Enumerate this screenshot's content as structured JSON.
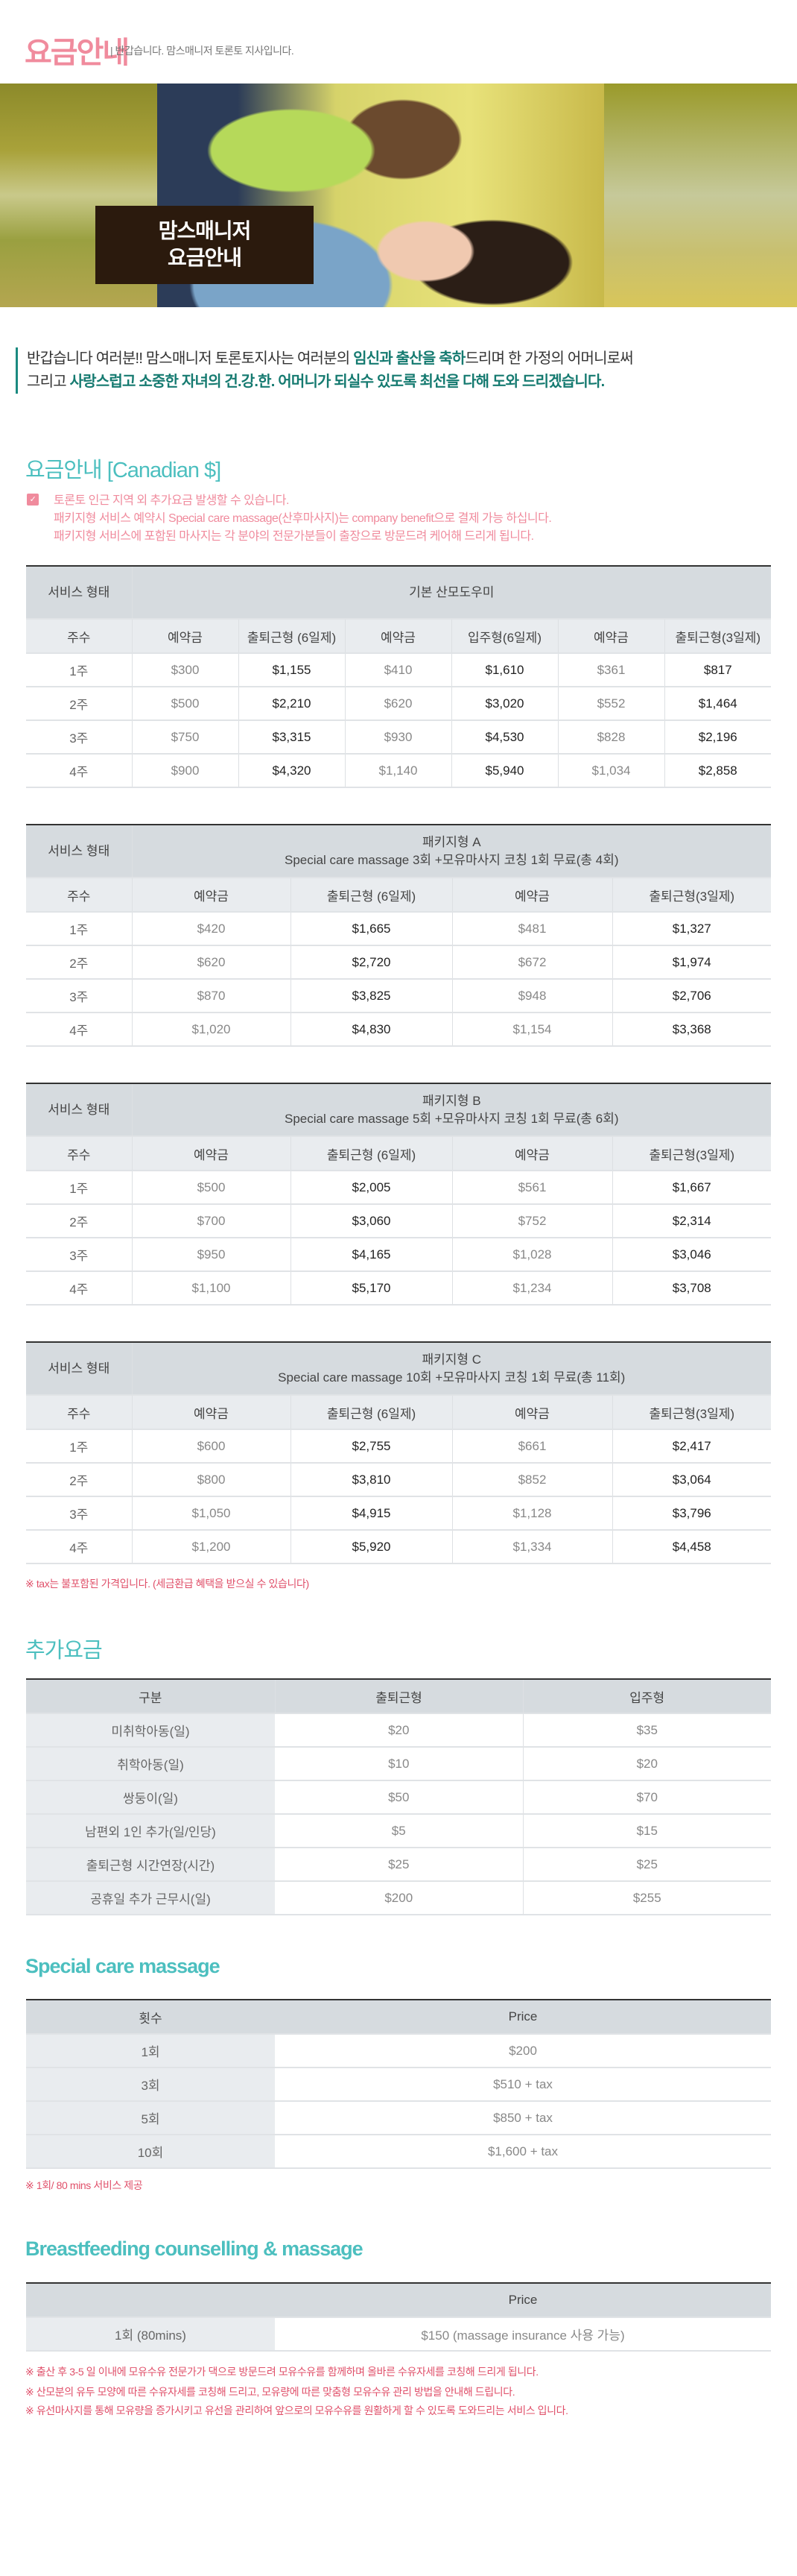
{
  "header": {
    "title": "요금안내",
    "subtitle": "| 반갑습니다. 맘스매니저 토론토 지사입니다."
  },
  "banner": {
    "line1": "맘스매니저",
    "line2": "요금안내"
  },
  "intro": {
    "l1a": "반갑습니다 여러분!! 맘스매니저 토론토지사는 여러분의 ",
    "l1b": "임신과 출산을 축하",
    "l1c": "드리며 한 가정의 어머니로써",
    "l2a": "그리고 ",
    "l2b": "사랑스럽고 소중한 자녀의 건.강.한. 어머니가 되실수 있도록 최선을 다해 도와 드리겠습니다."
  },
  "pricing": {
    "title": "요금안내 [Canadian $]",
    "notes": [
      "토론토 인근 지역 외 추가요금 발생할 수 있습니다.",
      "패키지형 서비스 예약시 Special care massage(산후마사지)는 company benefit으로 결제 가능 하십니다.",
      "패키지형 서비스에 포함된 마사지는 각 분야의 전문가분들이 출장으로 방문드려 케어해 드리게 됩니다."
    ],
    "tax_note": "※ tax는 불포함된 가격입니다. (세금환급 혜택을 받으실 수 있습니다)"
  },
  "tables": [
    {
      "corner": "서비스 형태",
      "title": "기본 산모도우미",
      "subtitle": "",
      "cols": [
        "주수",
        "예약금",
        "출퇴근형 (6일제)",
        "예약금",
        "입주형(6일제)",
        "예약금",
        "출퇴근형(3일제)"
      ],
      "rows": [
        [
          "1주",
          "$300",
          "$1,155",
          "$410",
          "$1,610",
          "$361",
          "$817"
        ],
        [
          "2주",
          "$500",
          "$2,210",
          "$620",
          "$3,020",
          "$552",
          "$1,464"
        ],
        [
          "3주",
          "$750",
          "$3,315",
          "$930",
          "$4,530",
          "$828",
          "$2,196"
        ],
        [
          "4주",
          "$900",
          "$4,320",
          "$1,140",
          "$5,940",
          "$1,034",
          "$2,858"
        ]
      ]
    },
    {
      "corner": "서비스 형태",
      "title": "패키지형 A",
      "subtitle": "Special care massage 3회 +모유마사지 코칭 1회 무료(총 4회)",
      "cols": [
        "주수",
        "예약금",
        "출퇴근형 (6일제)",
        "예약금",
        "출퇴근형(3일제)"
      ],
      "rows": [
        [
          "1주",
          "$420",
          "$1,665",
          "$481",
          "$1,327"
        ],
        [
          "2주",
          "$620",
          "$2,720",
          "$672",
          "$1,974"
        ],
        [
          "3주",
          "$870",
          "$3,825",
          "$948",
          "$2,706"
        ],
        [
          "4주",
          "$1,020",
          "$4,830",
          "$1,154",
          "$3,368"
        ]
      ]
    },
    {
      "corner": "서비스 형태",
      "title": "패키지형 B",
      "subtitle": "Special care massage 5회 +모유마사지 코칭 1회 무료(총 6회)",
      "cols": [
        "주수",
        "예약금",
        "출퇴근형 (6일제)",
        "예약금",
        "출퇴근형(3일제)"
      ],
      "rows": [
        [
          "1주",
          "$500",
          "$2,005",
          "$561",
          "$1,667"
        ],
        [
          "2주",
          "$700",
          "$3,060",
          "$752",
          "$2,314"
        ],
        [
          "3주",
          "$950",
          "$4,165",
          "$1,028",
          "$3,046"
        ],
        [
          "4주",
          "$1,100",
          "$5,170",
          "$1,234",
          "$3,708"
        ]
      ]
    },
    {
      "corner": "서비스 형태",
      "title": "패키지형 C",
      "subtitle": "Special care massage 10회 +모유마사지 코칭 1회 무료(총 11회)",
      "cols": [
        "주수",
        "예약금",
        "출퇴근형 (6일제)",
        "예약금",
        "출퇴근형(3일제)"
      ],
      "rows": [
        [
          "1주",
          "$600",
          "$2,755",
          "$661",
          "$2,417"
        ],
        [
          "2주",
          "$800",
          "$3,810",
          "$852",
          "$3,064"
        ],
        [
          "3주",
          "$1,050",
          "$4,915",
          "$1,128",
          "$3,796"
        ],
        [
          "4주",
          "$1,200",
          "$5,920",
          "$1,334",
          "$4,458"
        ]
      ]
    }
  ],
  "extra": {
    "title": "추가요금",
    "cols": [
      "구분",
      "출퇴근형",
      "입주형"
    ],
    "rows": [
      [
        "미취학아동(일)",
        "$20",
        "$35"
      ],
      [
        "취학아동(일)",
        "$10",
        "$20"
      ],
      [
        "쌍둥이(일)",
        "$50",
        "$70"
      ],
      [
        "남편외 1인 추가(일/인당)",
        "$5",
        "$15"
      ],
      [
        "출퇴근형 시간연장(시간)",
        "$25",
        "$25"
      ],
      [
        "공휴일 추가 근무시(일)",
        "$200",
        "$255"
      ]
    ]
  },
  "special": {
    "title": "Special care massage",
    "cols": [
      "횟수",
      "Price"
    ],
    "rows": [
      [
        "1회",
        "$200"
      ],
      [
        "3회",
        "$510 + tax"
      ],
      [
        "5회",
        "$850 + tax"
      ],
      [
        "10회",
        "$1,600 + tax"
      ]
    ],
    "note": "※ 1회/ 80 mins 서비스 제공"
  },
  "breast": {
    "title": "Breastfeeding counselling & massage",
    "cols": [
      "",
      "Price"
    ],
    "rows": [
      [
        "1회 (80mins)",
        "$150 (massage insurance 사용 가능)"
      ]
    ],
    "notes": [
      "※ 출산 후 3-5 일 이내에 모유수유 전문가가 댁으로 방문드려 모유수유를 함께하며 올바른 수유자세를 코칭해 드리게 됩니다.",
      "※ 산모분의 유두 모양에 따른 수유자세를 코칭해 드리고, 모유량에 따른 맞춤형 모유수유 관리 방법을 안내해 드립니다.",
      "※ 유선마사지를 통해 모유량을 증가시키고 유선을 관리하여 앞으로의 모유수유를 원활하게 할 수 있도록 도와드리는 서비스 입니다."
    ]
  },
  "colors": {
    "pink": "#f08b9d",
    "teal": "#4cbfbf",
    "dark_teal": "#157a70",
    "note_red": "#e0506a",
    "header_bg": "#d6dbdf"
  }
}
